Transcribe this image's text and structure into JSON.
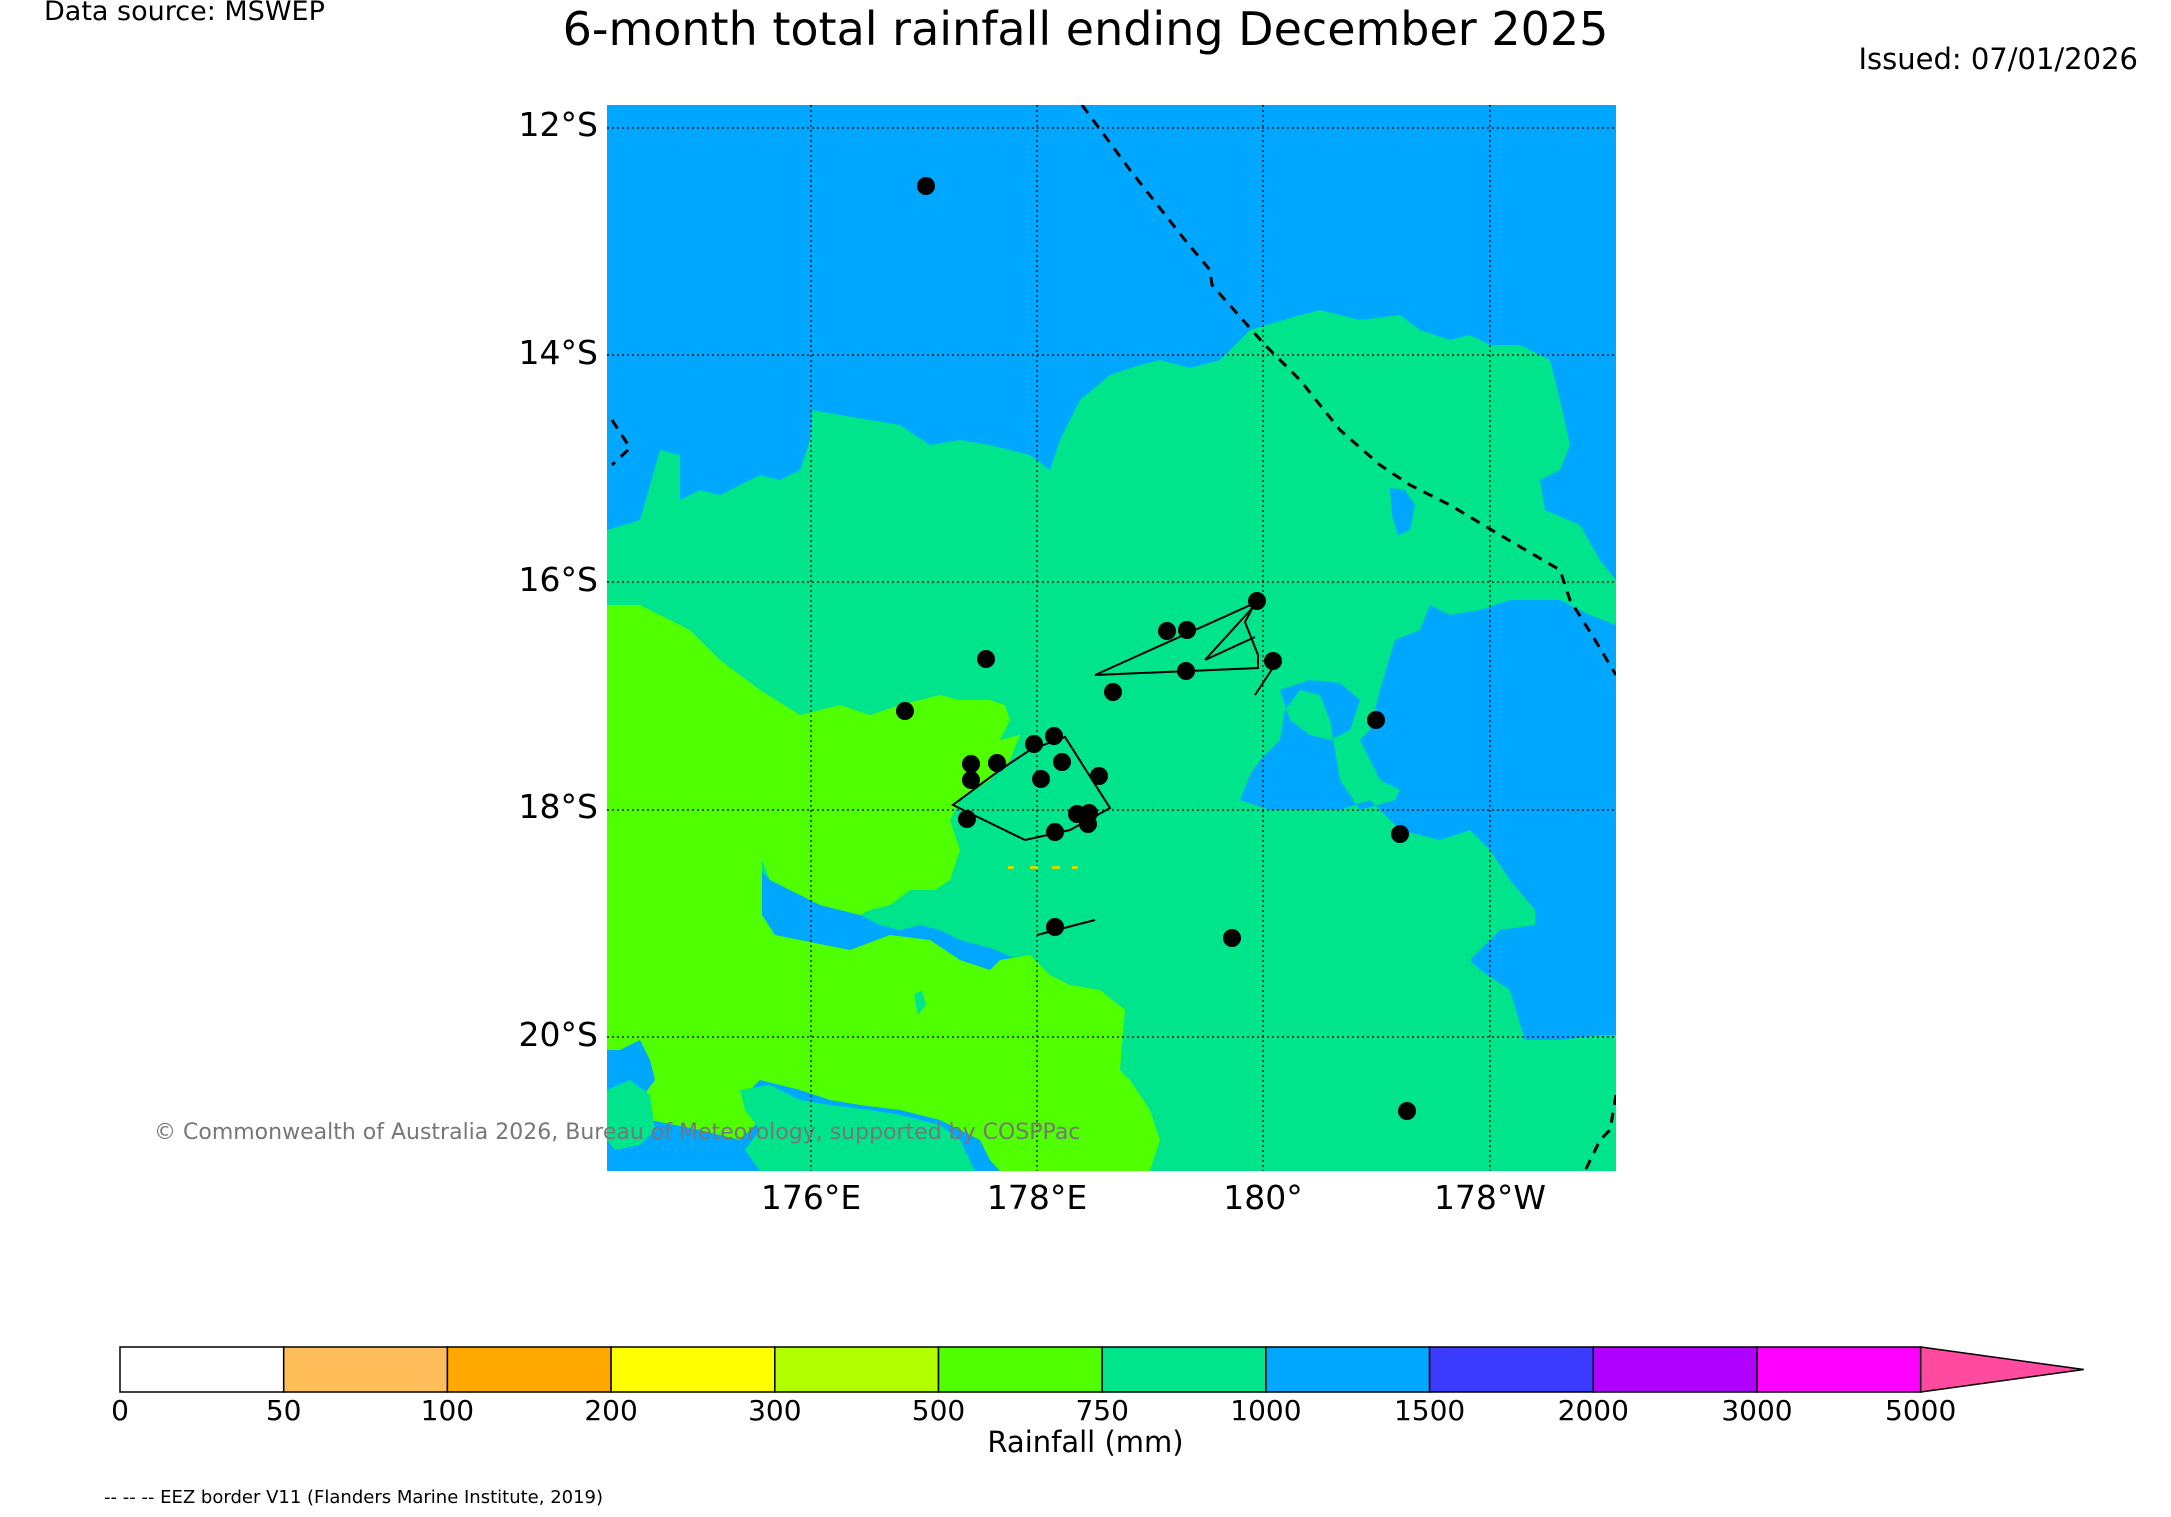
{
  "header": {
    "source": "Data source: MSWEP",
    "title": "6-month total rainfall ending December 2025",
    "issued": "Issued: 07/01/2026"
  },
  "map": {
    "lat_labels": [
      "12°S",
      "14°S",
      "16°S",
      "18°S",
      "20°S"
    ],
    "lon_labels": [
      "176°E",
      "178°E",
      "180°",
      "178°W"
    ],
    "copyright": "© Commonwealth of Australia 2026, Bureau of Meteorology, supported by COSPPac",
    "region_colors": {
      "r750_1000": "#00e48c",
      "r1000_1500": "#00a7ff",
      "r500_750": "#50ff00"
    }
  },
  "colorbar": {
    "title": "Rainfall (mm)",
    "ticks": [
      "0",
      "50",
      "100",
      "200",
      "300",
      "500",
      "750",
      "1000",
      "1500",
      "2000",
      "3000",
      "5000"
    ],
    "colors": [
      "#ffffff",
      "#ffbe5a",
      "#ffa800",
      "#ffff00",
      "#b2ff00",
      "#50ff00",
      "#00e48c",
      "#00a7ff",
      "#3c3cff",
      "#b000ff",
      "#ff00ff",
      "#ff4aa0"
    ]
  },
  "footer": {
    "eez_note": "-- -- -- EEZ border V11 (Flanders Marine Institute, 2019)"
  }
}
